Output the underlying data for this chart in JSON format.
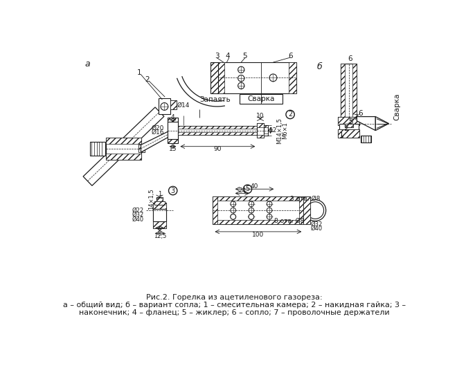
{
  "caption_line1": "Рис.2. Горелка из ацетиленового газореза:",
  "caption_line2": "а – общий вид; б – вариант сопла; 1 – смесительная камера; 2 – накидная гайка; 3 –",
  "caption_line3": "наконечник; 4 – фланец; 5 – жиклер; 6 – сопло; 7 – проволочные держатели",
  "bg_color": "#ffffff",
  "line_color": "#1a1a1a"
}
